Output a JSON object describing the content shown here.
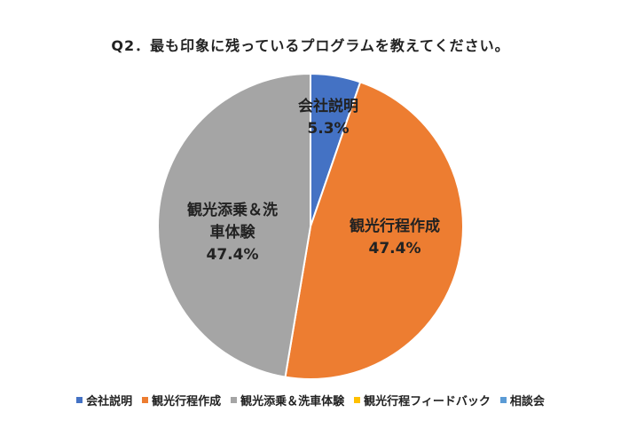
{
  "chart_data": {
    "type": "pie",
    "title": "Q2．最も印象に残っているプログラムを教えてください。",
    "categories": [
      "会社説明",
      "観光行程作成",
      "観光添乗＆洗車体験",
      "観光行程フィードバック",
      "相談会"
    ],
    "values": [
      5.3,
      47.4,
      47.4,
      0,
      0
    ],
    "value_labels": [
      "5.3%",
      "47.4%",
      "47.4%",
      "",
      ""
    ],
    "colors": [
      "#4472C4",
      "#ED7D31",
      "#A5A5A5",
      "#FFC000",
      "#5B9BD5"
    ],
    "start_angle": "top, clockwise",
    "legend_position": "bottom"
  }
}
